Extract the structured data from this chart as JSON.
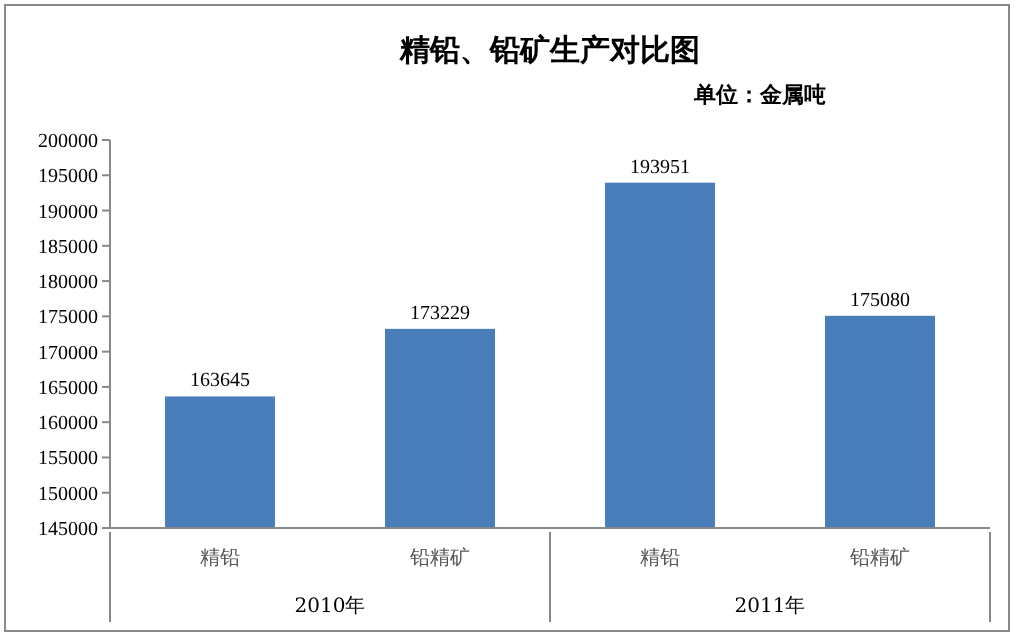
{
  "chart_data": {
    "type": "bar",
    "title": "精铅、铅矿生产对比图",
    "subtitle": "单位：金属吨",
    "categories": [
      "精铅",
      "铅精矿",
      "精铅",
      "铅精矿"
    ],
    "values": [
      163645,
      173229,
      193951,
      175080
    ],
    "color": "#4a7ebb",
    "ylim": [
      145000,
      200000
    ],
    "yticks": [
      145000,
      150000,
      155000,
      160000,
      165000,
      170000,
      175000,
      180000,
      185000,
      190000,
      195000,
      200000
    ],
    "data_labels": true,
    "grid": false,
    "annotations": [
      "2010年",
      "2011年"
    ]
  }
}
